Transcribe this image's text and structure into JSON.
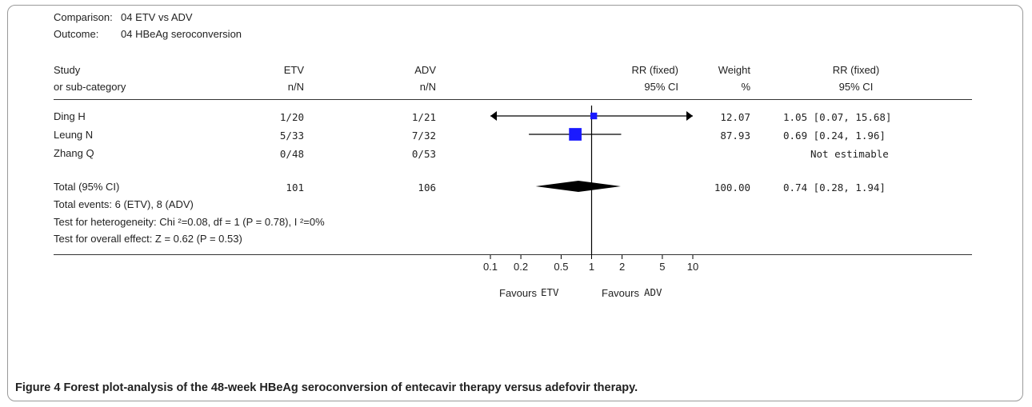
{
  "header": {
    "comparison_label": "Comparison:",
    "comparison_value": "04 ETV vs ADV",
    "outcome_label": "Outcome:",
    "outcome_value": "04 HBeAg seroconversion"
  },
  "columns": {
    "study_1": "Study",
    "study_2": "or sub-category",
    "etv_1": "ETV",
    "etv_2": "n/N",
    "adv_1": "ADV",
    "adv_2": "n/N",
    "rr_1": "RR (fixed)",
    "rr_2": "95% CI",
    "weight_1": "Weight",
    "weight_2": "%",
    "rrci_1": "RR (fixed)",
    "rrci_2": "95% CI"
  },
  "rows": [
    {
      "study": "Ding H",
      "etv": "1/20",
      "adv": "1/21",
      "weight": "12.07",
      "rr_ci": "1.05 [0.07, 15.68]"
    },
    {
      "study": "Leung N",
      "etv": "5/33",
      "adv": "7/32",
      "weight": "87.93",
      "rr_ci": "0.69 [0.24, 1.96]"
    },
    {
      "study": "Zhang Q",
      "etv": "0/48",
      "adv": "0/53",
      "weight": "",
      "rr_ci": "Not estimable"
    }
  ],
  "total": {
    "label": "Total (95% CI)",
    "etv": "101",
    "adv": "106",
    "weight": "100.00",
    "rr_ci": "0.74 [0.28, 1.94]"
  },
  "stats": {
    "events": "Total events: 6 (ETV), 8 (ADV)",
    "heterogeneity": "Test for heterogeneity: Chi ²=0.08, df = 1 (P = 0.78), I ²=0%",
    "overall": "Test for overall effect: Z = 0.62 (P = 0.53)"
  },
  "favours": {
    "left_word": "Favours",
    "left_group": "ETV",
    "right_word": "Favours",
    "right_group": "ADV"
  },
  "caption": {
    "label": "Figure 4",
    "text": "Forest plot-analysis of the 48-week HBeAg seroconversion of entecavir therapy versus adefovir therapy."
  },
  "chart_data": {
    "type": "forest",
    "x_scale": "log",
    "xlim": [
      0.1,
      10
    ],
    "xticks": [
      0.1,
      0.2,
      0.5,
      1,
      2,
      5,
      10
    ],
    "xtick_labels": [
      "0.1",
      "0.2",
      "0.5",
      "1",
      "2",
      "5",
      "10"
    ],
    "reference_line": 1,
    "studies": [
      {
        "name": "Ding H",
        "rr": 1.05,
        "lower": 0.07,
        "upper": 15.68,
        "weight": 12.07,
        "arrow_left": true,
        "arrow_right": true
      },
      {
        "name": "Leung N",
        "rr": 0.69,
        "lower": 0.24,
        "upper": 1.96,
        "weight": 87.93,
        "arrow_left": false,
        "arrow_right": false
      }
    ],
    "pooled": {
      "rr": 0.74,
      "lower": 0.28,
      "upper": 1.94
    },
    "marker_color": "#1a1aff",
    "diamond_color": "#000000"
  }
}
